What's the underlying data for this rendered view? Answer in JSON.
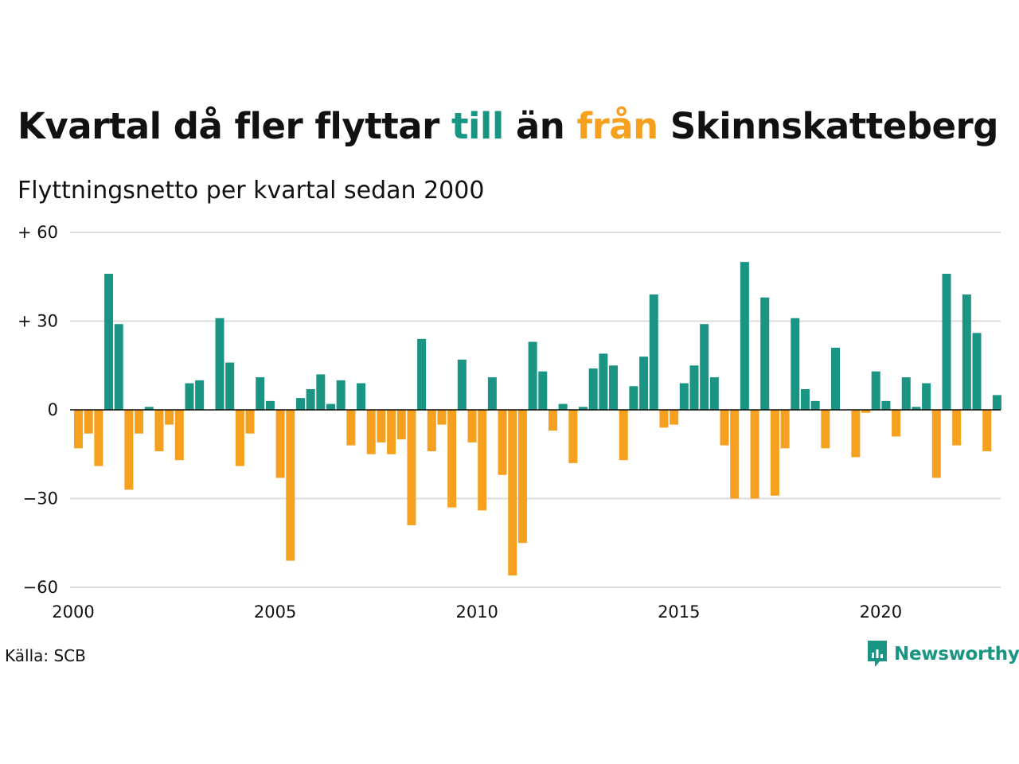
{
  "title": {
    "part1": "Kvartal då fler flyttar ",
    "till": "till",
    "part2": " än ",
    "fran": "från",
    "part3": " Skinnskatteberg"
  },
  "subtitle": "Flyttningsnetto per kvartal sedan 2000",
  "source": "Källa: SCB",
  "logo": {
    "text": "Newsworthy",
    "icon": "newsworthy-chart-bubble-icon"
  },
  "colors": {
    "positive": "#1a9483",
    "negative": "#f5a01e",
    "grid": "#dddddd",
    "text": "#111111"
  },
  "chart_data": {
    "type": "bar",
    "x_start": "2000 Q1",
    "y_ticks": [
      60,
      30,
      0,
      -30,
      -60
    ],
    "y_tick_labels": [
      "+ 60",
      "+ 30",
      "0",
      "−30",
      "−60"
    ],
    "ylim": [
      -60,
      60
    ],
    "x_tick_labels": [
      "2000",
      "2005",
      "2010",
      "2015",
      "2020"
    ],
    "grid": "horizontal",
    "values": [
      -13,
      -8,
      -19,
      46,
      29,
      -27,
      -8,
      1,
      -14,
      -5,
      -17,
      9,
      10,
      0,
      31,
      16,
      -19,
      -8,
      11,
      3,
      -23,
      -51,
      4,
      7,
      12,
      2,
      10,
      -12,
      9,
      -15,
      -11,
      -15,
      -10,
      -39,
      24,
      -14,
      -5,
      -33,
      17,
      -11,
      -34,
      11,
      -22,
      -56,
      -45,
      23,
      13,
      -7,
      2,
      -18,
      1,
      14,
      19,
      15,
      -17,
      8,
      18,
      39,
      -6,
      -5,
      9,
      15,
      29,
      11,
      -12,
      -30,
      50,
      -30,
      38,
      -29,
      -13,
      31,
      7,
      3,
      -13,
      21,
      0,
      -16,
      -1,
      13,
      3,
      -9,
      11,
      1,
      9,
      -23,
      46,
      -12,
      39,
      26,
      -14,
      5
    ]
  }
}
